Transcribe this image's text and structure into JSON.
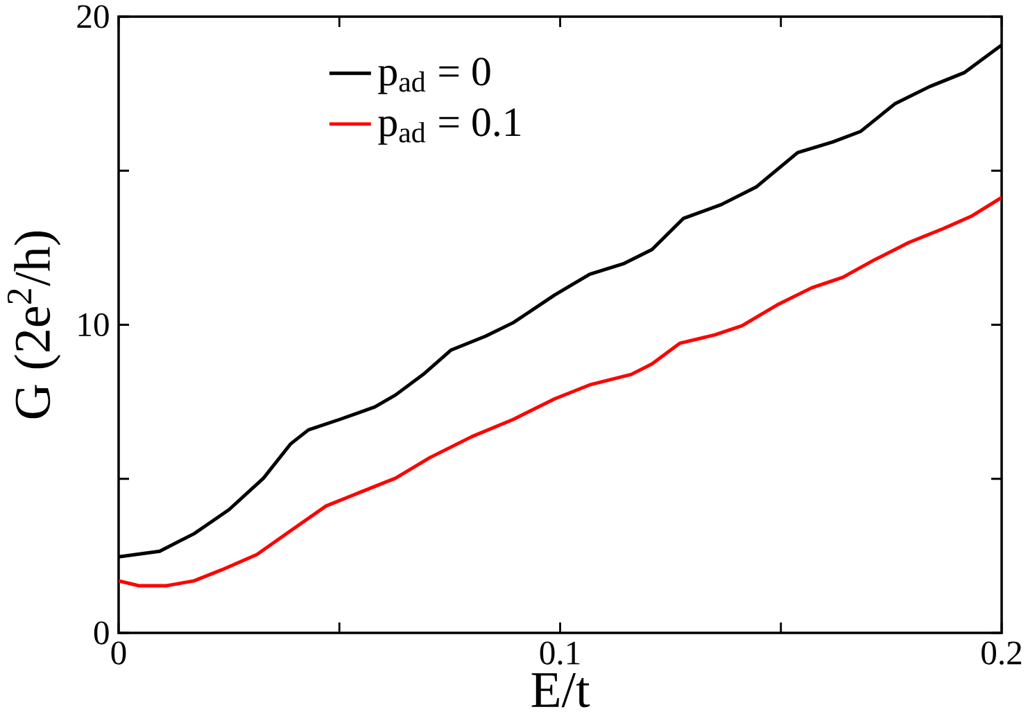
{
  "chart_data": {
    "type": "line",
    "xlabel": "E/t",
    "ylabel": "G (2e$^{2}$/h)",
    "xlim": [
      0,
      0.2
    ],
    "ylim": [
      0,
      20
    ],
    "xticks": [
      0,
      {
        "value": 0.05,
        "label": null
      },
      0.1,
      {
        "value": 0.15,
        "label": null
      },
      0.2
    ],
    "yticks": [
      0,
      {
        "value": 5,
        "label": null
      },
      10,
      {
        "value": 15,
        "label": null
      },
      20
    ],
    "legend": "top",
    "x": [
      0,
      0.0093,
      0.0171,
      0.025,
      0.0328,
      0.039,
      0.043,
      0.0501,
      0.058,
      0.0627,
      0.069,
      0.0753,
      0.0831,
      0.0894,
      0.0988,
      0.1067,
      0.1145,
      0.1208,
      0.1279,
      0.1365,
      0.1444,
      0.1538,
      0.1617,
      0.168,
      0.1758,
      0.1837,
      0.1915,
      0.2
    ],
    "series": [
      {
        "name": "p$_{ad}$ = 0",
        "color": "#000000",
        "values": [
          2.47,
          2.65,
          3.22,
          4.0,
          5.02,
          6.14,
          6.59,
          6.93,
          7.33,
          7.72,
          8.39,
          9.18,
          9.63,
          10.07,
          10.97,
          11.64,
          11.99,
          12.44,
          13.45,
          13.9,
          14.47,
          15.59,
          15.93,
          16.27,
          17.17,
          17.73,
          18.18,
          19.08
        ]
      },
      {
        "name": "p$_{ad}$ = 0.1",
        "color": "#ff0000",
        "x": [
          0,
          0.0046,
          0.0108,
          0.0171,
          0.0234,
          0.0313,
          0.0391,
          0.047,
          0.0548,
          0.0627,
          0.0705,
          0.08,
          0.0894,
          0.0988,
          0.1067,
          0.1161,
          0.1208,
          0.1271,
          0.135,
          0.1412,
          0.1491,
          0.157,
          0.164,
          0.1711,
          0.179,
          0.1868,
          0.1931,
          0.2
        ],
        "values": [
          1.69,
          1.53,
          1.53,
          1.69,
          2.05,
          2.54,
          3.33,
          4.12,
          4.57,
          5.02,
          5.69,
          6.37,
          6.93,
          7.6,
          8.05,
          8.39,
          8.73,
          9.4,
          9.67,
          9.97,
          10.64,
          11.2,
          11.54,
          12.1,
          12.67,
          13.12,
          13.52,
          14.13
        ]
      }
    ]
  }
}
